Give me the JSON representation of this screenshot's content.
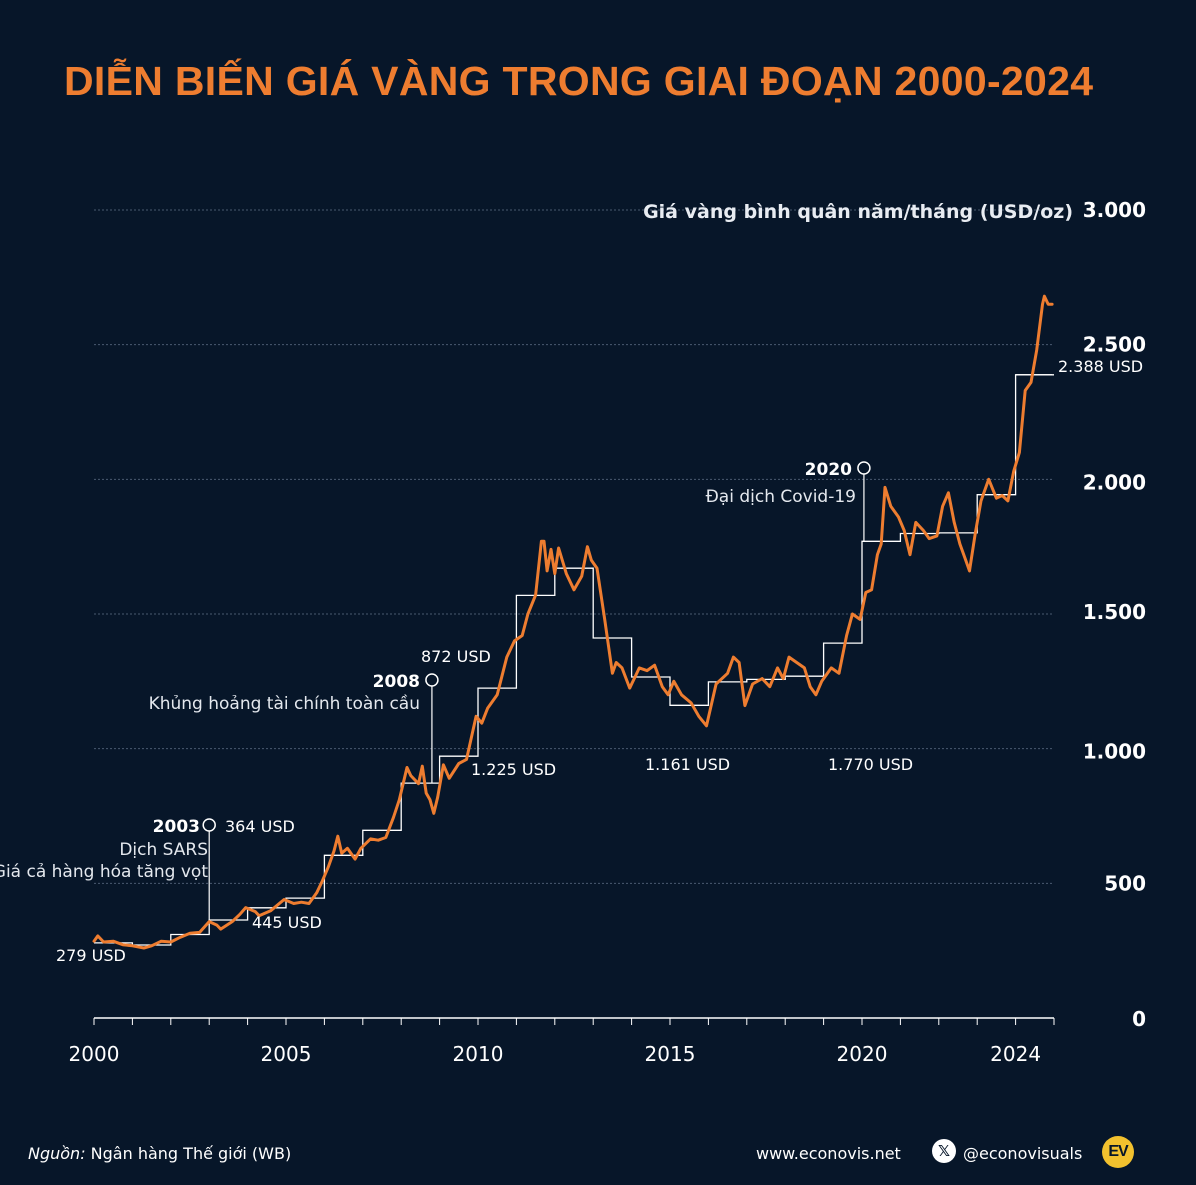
{
  "header": {
    "title": "DIỄN BIẾN GIÁ VÀNG TRONG GIAI ĐOẠN 2000-2024"
  },
  "chart_data": {
    "type": "line",
    "title": "DIỄN BIẾN GIÁ VÀNG TRONG GIAI ĐOẠN 2000-2024",
    "ylabel": "Giá vàng bình quân năm/tháng (USD/oz)",
    "xlabel": "",
    "xlim": [
      2000,
      2025
    ],
    "ylim": [
      0,
      3000
    ],
    "y_ticks": [
      0,
      500,
      1000,
      1500,
      2000,
      2500,
      3000
    ],
    "y_tick_labels": [
      "0",
      "500",
      "1.000",
      "1.500",
      "2.000",
      "2.500",
      "3.000"
    ],
    "x_ticks": [
      2000,
      2005,
      2010,
      2015,
      2020,
      2024
    ],
    "x_tick_labels": [
      "2000",
      "2005",
      "2010",
      "2015",
      "2020",
      "2024"
    ],
    "grid": true,
    "colors": {
      "monthly": "#ee7d30",
      "annual": "#ffffff",
      "grid": "#4a5a70"
    },
    "series": [
      {
        "kind": "annual_step",
        "years": [
          2000,
          2001,
          2002,
          2003,
          2004,
          2005,
          2006,
          2007,
          2008,
          2009,
          2010,
          2011,
          2012,
          2013,
          2014,
          2015,
          2016,
          2017,
          2018,
          2019,
          2020,
          2021,
          2022,
          2023,
          2024
        ],
        "values": [
          279,
          271,
          310,
          364,
          409,
          445,
          604,
          697,
          872,
          972,
          1225,
          1569,
          1670,
          1411,
          1266,
          1161,
          1248,
          1257,
          1269,
          1392,
          1770,
          1799,
          1801,
          1943,
          2388
        ]
      },
      {
        "kind": "monthly",
        "points": [
          [
            2000.0,
            285
          ],
          [
            2000.1,
            305
          ],
          [
            2000.25,
            282
          ],
          [
            2000.5,
            285
          ],
          [
            2000.75,
            272
          ],
          [
            2001.0,
            268
          ],
          [
            2001.3,
            260
          ],
          [
            2001.5,
            268
          ],
          [
            2001.75,
            285
          ],
          [
            2002.0,
            282
          ],
          [
            2002.25,
            300
          ],
          [
            2002.5,
            315
          ],
          [
            2002.75,
            318
          ],
          [
            2003.0,
            358
          ],
          [
            2003.2,
            345
          ],
          [
            2003.3,
            330
          ],
          [
            2003.6,
            358
          ],
          [
            2003.8,
            385
          ],
          [
            2003.95,
            410
          ],
          [
            2004.2,
            395
          ],
          [
            2004.3,
            380
          ],
          [
            2004.6,
            398
          ],
          [
            2004.95,
            440
          ],
          [
            2005.2,
            425
          ],
          [
            2005.4,
            430
          ],
          [
            2005.6,
            425
          ],
          [
            2005.8,
            465
          ],
          [
            2005.95,
            510
          ],
          [
            2006.1,
            560
          ],
          [
            2006.25,
            620
          ],
          [
            2006.35,
            675
          ],
          [
            2006.45,
            612
          ],
          [
            2006.6,
            630
          ],
          [
            2006.8,
            590
          ],
          [
            2006.95,
            630
          ],
          [
            2007.2,
            665
          ],
          [
            2007.4,
            660
          ],
          [
            2007.6,
            670
          ],
          [
            2007.8,
            745
          ],
          [
            2007.95,
            810
          ],
          [
            2008.15,
            930
          ],
          [
            2008.25,
            900
          ],
          [
            2008.45,
            870
          ],
          [
            2008.55,
            935
          ],
          [
            2008.65,
            835
          ],
          [
            2008.75,
            810
          ],
          [
            2008.85,
            760
          ],
          [
            2008.95,
            820
          ],
          [
            2009.1,
            940
          ],
          [
            2009.25,
            890
          ],
          [
            2009.5,
            945
          ],
          [
            2009.7,
            960
          ],
          [
            2009.95,
            1120
          ],
          [
            2010.1,
            1095
          ],
          [
            2010.25,
            1150
          ],
          [
            2010.5,
            1200
          ],
          [
            2010.75,
            1340
          ],
          [
            2010.95,
            1400
          ],
          [
            2011.15,
            1420
          ],
          [
            2011.3,
            1500
          ],
          [
            2011.5,
            1570
          ],
          [
            2011.65,
            1770
          ],
          [
            2011.72,
            1770
          ],
          [
            2011.8,
            1660
          ],
          [
            2011.9,
            1740
          ],
          [
            2012.0,
            1650
          ],
          [
            2012.1,
            1745
          ],
          [
            2012.3,
            1650
          ],
          [
            2012.5,
            1590
          ],
          [
            2012.7,
            1640
          ],
          [
            2012.85,
            1750
          ],
          [
            2012.95,
            1700
          ],
          [
            2013.1,
            1670
          ],
          [
            2013.3,
            1480
          ],
          [
            2013.5,
            1280
          ],
          [
            2013.6,
            1320
          ],
          [
            2013.75,
            1300
          ],
          [
            2013.95,
            1225
          ],
          [
            2014.2,
            1300
          ],
          [
            2014.4,
            1290
          ],
          [
            2014.6,
            1310
          ],
          [
            2014.8,
            1230
          ],
          [
            2014.95,
            1200
          ],
          [
            2015.1,
            1250
          ],
          [
            2015.3,
            1200
          ],
          [
            2015.55,
            1170
          ],
          [
            2015.75,
            1120
          ],
          [
            2015.95,
            1085
          ],
          [
            2016.2,
            1240
          ],
          [
            2016.5,
            1280
          ],
          [
            2016.65,
            1340
          ],
          [
            2016.8,
            1320
          ],
          [
            2016.95,
            1160
          ],
          [
            2017.15,
            1240
          ],
          [
            2017.4,
            1260
          ],
          [
            2017.6,
            1230
          ],
          [
            2017.8,
            1300
          ],
          [
            2017.95,
            1260
          ],
          [
            2018.1,
            1340
          ],
          [
            2018.3,
            1320
          ],
          [
            2018.5,
            1300
          ],
          [
            2018.65,
            1230
          ],
          [
            2018.8,
            1200
          ],
          [
            2018.95,
            1250
          ],
          [
            2019.2,
            1300
          ],
          [
            2019.4,
            1280
          ],
          [
            2019.6,
            1420
          ],
          [
            2019.75,
            1500
          ],
          [
            2019.95,
            1480
          ],
          [
            2020.1,
            1580
          ],
          [
            2020.25,
            1590
          ],
          [
            2020.4,
            1720
          ],
          [
            2020.5,
            1760
          ],
          [
            2020.6,
            1970
          ],
          [
            2020.75,
            1900
          ],
          [
            2020.95,
            1860
          ],
          [
            2021.1,
            1810
          ],
          [
            2021.25,
            1720
          ],
          [
            2021.4,
            1840
          ],
          [
            2021.6,
            1810
          ],
          [
            2021.75,
            1780
          ],
          [
            2021.95,
            1790
          ],
          [
            2022.1,
            1900
          ],
          [
            2022.25,
            1950
          ],
          [
            2022.4,
            1840
          ],
          [
            2022.55,
            1760
          ],
          [
            2022.7,
            1700
          ],
          [
            2022.8,
            1660
          ],
          [
            2022.95,
            1800
          ],
          [
            2023.1,
            1920
          ],
          [
            2023.3,
            2000
          ],
          [
            2023.5,
            1930
          ],
          [
            2023.65,
            1940
          ],
          [
            2023.8,
            1920
          ],
          [
            2023.95,
            2030
          ],
          [
            2024.1,
            2100
          ],
          [
            2024.25,
            2330
          ],
          [
            2024.4,
            2360
          ],
          [
            2024.55,
            2480
          ],
          [
            2024.7,
            2650
          ],
          [
            2024.75,
            2680
          ],
          [
            2024.85,
            2650
          ],
          [
            2024.95,
            2650
          ]
        ]
      }
    ],
    "annotations": {
      "e2003": {
        "year": "2003",
        "lines": [
          "Dịch SARS",
          "Giá cả hàng hóa tăng vọt"
        ]
      },
      "e2008": {
        "year": "2008",
        "lines": [
          "Khủng hoảng tài chính toàn cầu"
        ]
      },
      "e2020": {
        "year": "2020",
        "lines": [
          "Đại dịch Covid-19"
        ]
      },
      "values": {
        "v2000": "279 USD",
        "v2003": "364 USD",
        "v2005": "445 USD",
        "v2008": "872 USD",
        "v2010": "1.225 USD",
        "v2015": "1.161 USD",
        "v2020": "1.770 USD",
        "v2024": "2.388 USD"
      }
    }
  },
  "footer": {
    "source_label": "Nguồn:",
    "source_text": " Ngân hàng Thế giới (WB)",
    "website": "www.econovis.net",
    "handle": "@econovisuals",
    "x_glyph": "𝕏",
    "logo_text": "EV"
  }
}
